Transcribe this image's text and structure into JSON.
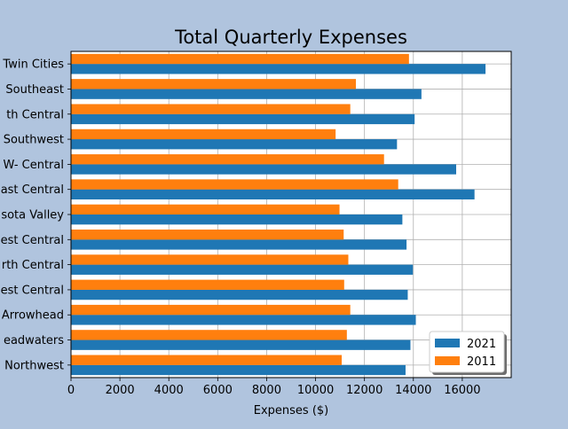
{
  "chart_data": {
    "type": "bar",
    "orientation": "horizontal",
    "title": "Total Quarterly Expenses",
    "xlabel": "Expenses ($)",
    "ylabel": "",
    "xlim": [
      0,
      18000
    ],
    "xticks": [
      0,
      2000,
      4000,
      6000,
      8000,
      10000,
      12000,
      14000,
      16000
    ],
    "xtick_labels": [
      "0",
      "2000",
      "4000",
      "6000",
      "8000",
      "10000",
      "12000",
      "14000",
      "16000"
    ],
    "grid": true,
    "legend_position": "bottom-right",
    "categories": [
      "Twin Cities",
      "Southeast",
      "th Central",
      "Southwest",
      "W- Central",
      "ast Central",
      "sota Valley",
      "est Central",
      "rth Central",
      "est Central",
      "Arrowhead",
      "eadwaters",
      "Northwest"
    ],
    "series": [
      {
        "name": "2021",
        "color": "#1f77b4",
        "values": [
          16950,
          14330,
          14050,
          13330,
          15750,
          16500,
          13550,
          13720,
          13980,
          13770,
          14100,
          13880,
          13680
        ]
      },
      {
        "name": "2011",
        "color": "#ff7f0e",
        "values": [
          13820,
          11650,
          11420,
          10820,
          12800,
          13380,
          10980,
          11150,
          11340,
          11170,
          11420,
          11280,
          11070
        ]
      }
    ]
  }
}
